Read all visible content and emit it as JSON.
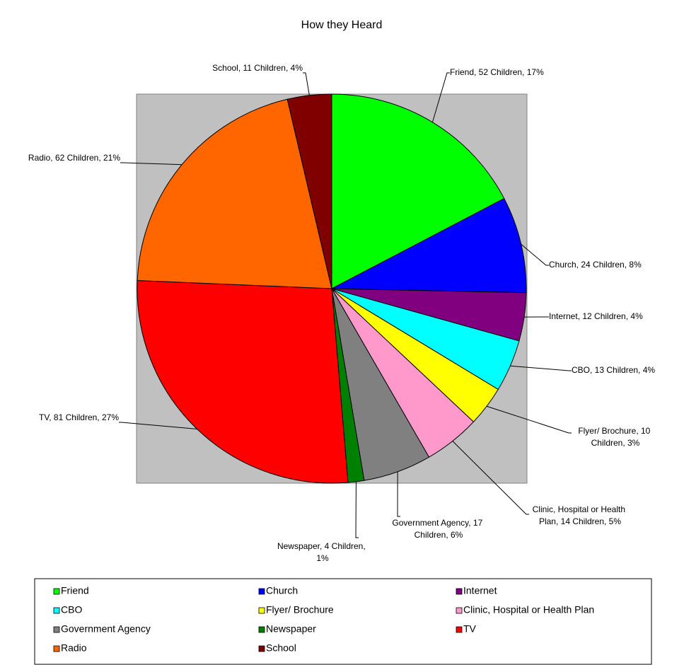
{
  "chart_data": {
    "type": "pie",
    "title": "How they Heard",
    "categories": [
      "Friend",
      "Church",
      "Internet",
      "CBO",
      "Flyer/ Brochure",
      "Clinic, Hospital or Health Plan",
      "Government Agency",
      "Newspaper",
      "TV",
      "Radio",
      "School"
    ],
    "values": [
      52,
      24,
      12,
      13,
      10,
      14,
      17,
      4,
      81,
      62,
      11
    ],
    "value_labels": [
      "Friend, 52 Children, 17%",
      "Church, 24 Children, 8%",
      "Internet, 12 Children, 4%",
      "CBO, 13 Children, 4%",
      "Flyer/ Brochure, 10 Children, 3%",
      "Clinic, Hospital or Health Plan, 14 Children, 5%",
      "Government Agency, 17 Children, 6%",
      "Newspaper, 4 Children, 1%",
      "TV, 81 Children, 27%",
      "Radio, 62 Children, 21%",
      "School, 11 Children, 4%"
    ],
    "colors": [
      "#00ff00",
      "#0000ff",
      "#800080",
      "#00ffff",
      "#ffff00",
      "#ff99cc",
      "#808080",
      "#008000",
      "#ff0000",
      "#ff6600",
      "#800000"
    ],
    "legend": "bottom"
  }
}
